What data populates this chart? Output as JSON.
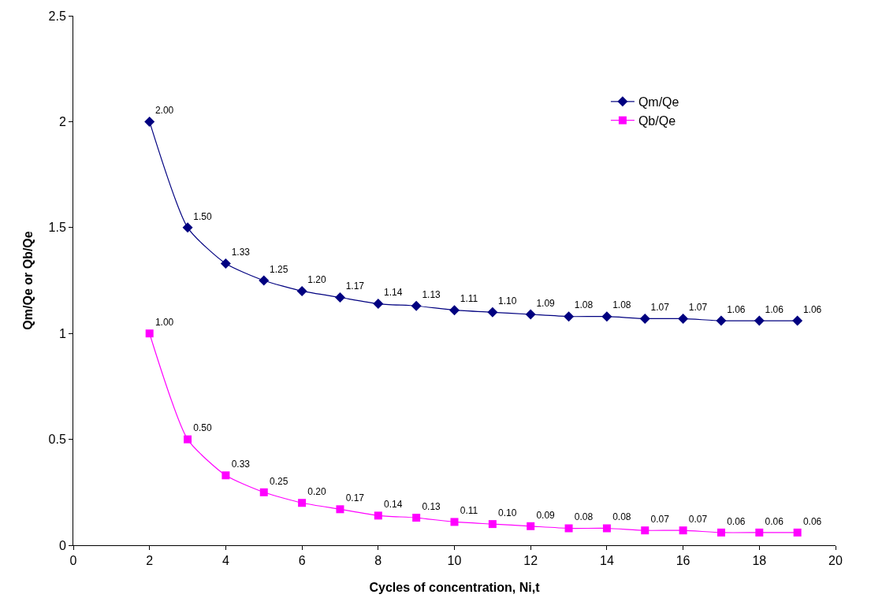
{
  "chart_data": {
    "type": "line",
    "xlabel": "Cycles of concentration, Ni,t",
    "ylabel": "Qm/Qe or Qb/Qe",
    "x": [
      2,
      3,
      4,
      5,
      6,
      7,
      8,
      9,
      10,
      11,
      12,
      13,
      14,
      15,
      16,
      17,
      18,
      19
    ],
    "series": [
      {
        "name": "Qm/Qe",
        "color": "#000080",
        "marker": "diamond",
        "values": [
          2.0,
          1.5,
          1.33,
          1.25,
          1.2,
          1.17,
          1.14,
          1.13,
          1.11,
          1.1,
          1.09,
          1.08,
          1.08,
          1.07,
          1.07,
          1.06,
          1.06,
          1.06
        ],
        "value_labels": [
          "2.00",
          "1.50",
          "1.33",
          "1.25",
          "1.20",
          "1.17",
          "1.14",
          "1.13",
          "1.11",
          "1.10",
          "1.09",
          "1.08",
          "1.08",
          "1.07",
          "1.07",
          "1.06",
          "1.06",
          "1.06"
        ]
      },
      {
        "name": "Qb/Qe",
        "color": "#ff00ff",
        "marker": "square",
        "values": [
          1.0,
          0.5,
          0.33,
          0.25,
          0.2,
          0.17,
          0.14,
          0.13,
          0.11,
          0.1,
          0.09,
          0.08,
          0.08,
          0.07,
          0.07,
          0.06,
          0.06,
          0.06
        ],
        "value_labels": [
          "1.00",
          "0.50",
          "0.33",
          "0.25",
          "0.20",
          "0.17",
          "0.14",
          "0.13",
          "0.11",
          "0.10",
          "0.09",
          "0.08",
          "0.08",
          "0.07",
          "0.07",
          "0.06",
          "0.06",
          "0.06"
        ]
      }
    ],
    "xlim": [
      0,
      20
    ],
    "xticks": [
      0,
      2,
      4,
      6,
      8,
      10,
      12,
      14,
      16,
      18,
      20
    ],
    "ylim": [
      0,
      2.5
    ],
    "yticks": [
      0,
      0.5,
      1,
      1.5,
      2,
      2.5
    ],
    "legend": "right",
    "line_style": "solid"
  }
}
